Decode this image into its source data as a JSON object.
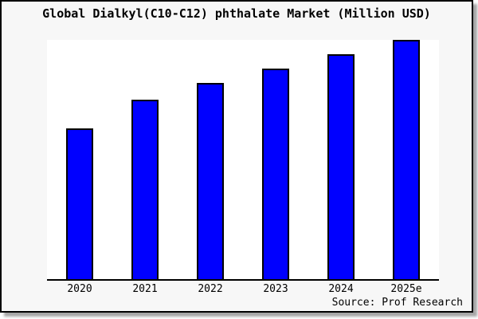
{
  "title": "Global Dialkyl(C10-C12) phthalate Market (Million USD)",
  "source_credit": "Source: Prof Research",
  "frame": {
    "border_color": "#000000",
    "background": "#f7f7f7",
    "plot_background": "#ffffff",
    "shadow_color": "#a6a6a6",
    "axis_color": "#000000"
  },
  "chart_data": {
    "type": "bar",
    "title": "Global Dialkyl(C10-C12) phthalate Market (Million USD)",
    "categories": [
      "2020",
      "2021",
      "2022",
      "2023",
      "2024",
      "2025e"
    ],
    "values": [
      63,
      75,
      82,
      88,
      94,
      100
    ],
    "ylim": [
      0,
      100
    ],
    "xlabel": "",
    "ylabel": "",
    "grid": false,
    "legend": false,
    "y_axis_labels_shown": false,
    "note": "No numeric y-axis shown in chart; values are relative bar heights normalized to 2025e = 100.",
    "bar_color": "#0000ff",
    "bar_border_color": "#000000",
    "source": "Source: Prof Research"
  }
}
